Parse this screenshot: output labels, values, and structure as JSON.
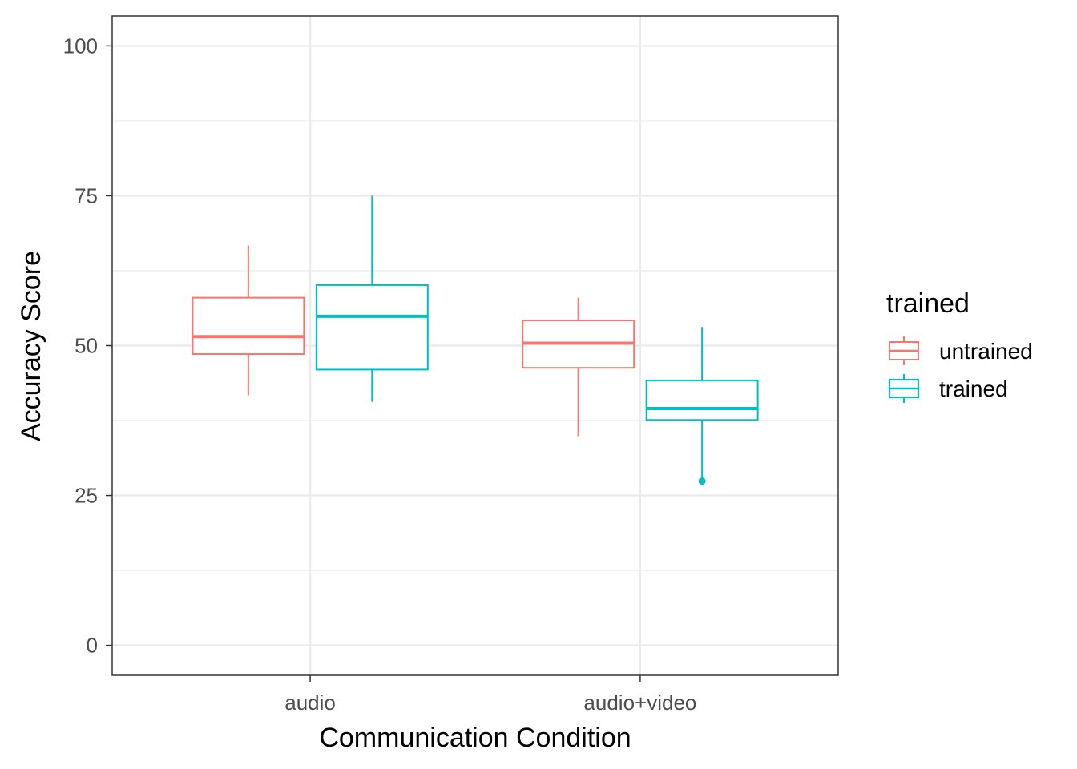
{
  "chart_data": {
    "type": "boxplot",
    "xlabel": "Communication Condition",
    "ylabel": "Accuracy Score",
    "ylim": [
      -5,
      105
    ],
    "yticks": [
      0,
      25,
      50,
      75,
      100
    ],
    "categories": [
      "audio",
      "audio+video"
    ],
    "grid": true,
    "legend": {
      "title": "trained",
      "position": "right",
      "entries": [
        "untrained",
        "trained"
      ]
    },
    "series": [
      {
        "name": "untrained",
        "color": "#F8766D",
        "boxes": [
          {
            "category": "audio",
            "min": 41.7,
            "q1": 48.6,
            "median": 51.5,
            "q3": 58.0,
            "max": 66.7,
            "outliers": []
          },
          {
            "category": "audio+video",
            "min": 34.9,
            "q1": 46.3,
            "median": 50.4,
            "q3": 54.2,
            "max": 58.0,
            "outliers": []
          }
        ]
      },
      {
        "name": "trained",
        "color": "#00BFC4",
        "boxes": [
          {
            "category": "audio",
            "min": 40.6,
            "q1": 46.0,
            "median": 54.9,
            "q3": 60.1,
            "max": 75.0,
            "outliers": []
          },
          {
            "category": "audio+video",
            "min": 27.5,
            "q1": 37.6,
            "median": 39.5,
            "q3": 44.2,
            "max": 53.1,
            "outliers": [
              27.4
            ]
          }
        ]
      }
    ]
  }
}
